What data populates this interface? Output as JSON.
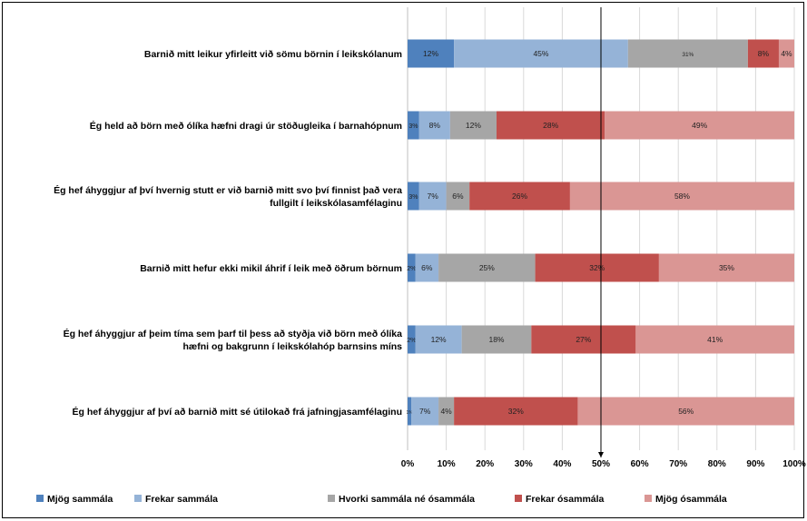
{
  "chart_data": {
    "type": "bar",
    "orientation": "horizontal",
    "stacking": "percent",
    "categories": [
      [
        "Barnið mitt leikur yfirleitt við sömu börnin í leikskólanum"
      ],
      [
        "Ég held að börn með ólíka hæfni dragi úr stöðugleika í barnahópnum"
      ],
      [
        "Ég hef áhyggjur af því hvernig stutt er við barnið mitt svo því finnist það vera",
        "fullgilt í leikskólasamfélaginu"
      ],
      [
        "Barnið mitt hefur ekki mikil áhrif í leik með öðrum börnum"
      ],
      [
        "Ég hef áhyggjur af þeim tíma sem þarf til þess að styðja við börn með ólíka",
        "hæfni og bakgrunn í leikskólahóp barnsins míns"
      ],
      [
        "Ég hef áhyggjur af því að barnið mitt sé útilokað frá jafningjasamfélaginu"
      ]
    ],
    "series": [
      {
        "name": "Mjög sammála",
        "color": "#4f81bd",
        "values": [
          12,
          3,
          3,
          2,
          2,
          1
        ],
        "labels": [
          "12%",
          "3%",
          "3%",
          "2%",
          "2%",
          "1%"
        ]
      },
      {
        "name": "Frekar sammála",
        "color": "#95b3d7",
        "values": [
          45,
          8,
          7,
          6,
          12,
          7
        ],
        "labels": [
          "45%",
          "8%",
          "7%",
          "6%",
          "12%",
          "7%"
        ]
      },
      {
        "name": "Hvorki sammála né ósammála",
        "color": "#a6a6a6",
        "values": [
          31,
          12,
          6,
          25,
          18,
          4
        ],
        "labels": [
          "31%",
          "12%",
          "6%",
          "25%",
          "18%",
          "4%"
        ]
      },
      {
        "name": "Frekar ósammála",
        "color": "#c0504d",
        "values": [
          8,
          28,
          26,
          32,
          27,
          32
        ],
        "labels": [
          "8%",
          "28%",
          "26%",
          "32%",
          "27%",
          "32%"
        ]
      },
      {
        "name": "Mjög ósammála",
        "color": "#da9694",
        "values": [
          4,
          49,
          58,
          35,
          41,
          56
        ],
        "labels": [
          "4%",
          "49%",
          "58%",
          "35%",
          "41%",
          "56%"
        ]
      }
    ],
    "xlim": [
      0,
      100
    ],
    "xticks": [
      "0%",
      "10%",
      "20%",
      "30%",
      "40%",
      "50%",
      "60%",
      "70%",
      "80%",
      "90%",
      "100%"
    ],
    "reference_line_value": 50,
    "grid": true,
    "legend_position": "bottom"
  }
}
